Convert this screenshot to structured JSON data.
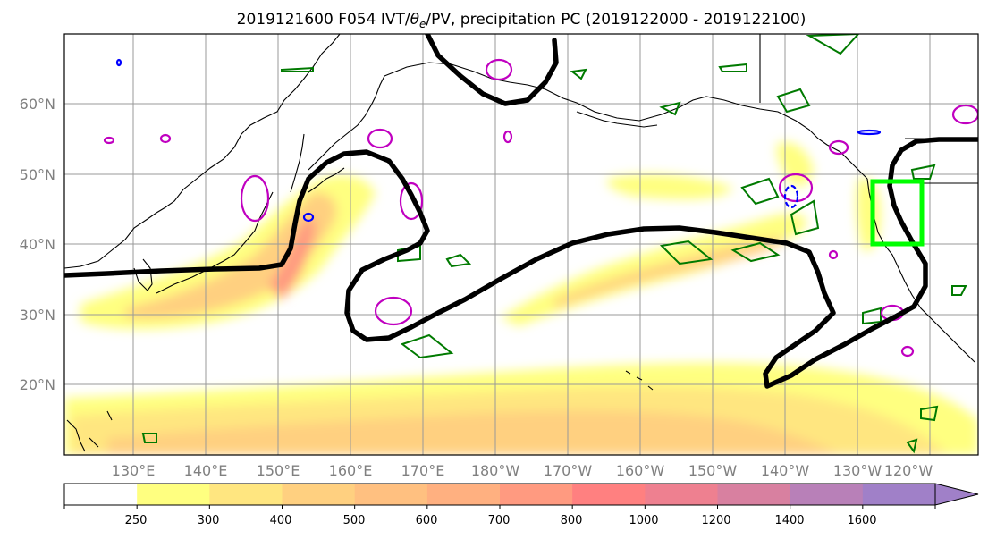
{
  "figure": {
    "title": "2019121600 F054 IVT/θe/PV, precipitation PC (2019122000 - 2019122100)",
    "title_parts": {
      "before": "2019121600 F054 IVT/",
      "theta": "θ",
      "theta_sub": "e",
      "after": "/PV, precipitation PC (2019122000 - 2019122100)"
    }
  },
  "map": {
    "lon_labels": [
      "130°E",
      "140°E",
      "150°E",
      "160°E",
      "170°E",
      "180°W",
      "170°W",
      "160°W",
      "150°W",
      "140°W",
      "130°W",
      "120°W"
    ],
    "lat_labels": [
      "20°N",
      "30°N",
      "40°N",
      "50°N",
      "60°N"
    ],
    "grid": true,
    "projection": "equirectangular",
    "extent": {
      "lon_min": 120,
      "lon_max": 246,
      "lat_min": 10,
      "lat_max": 70
    },
    "colors": {
      "ivt_contour": "#000000",
      "theta_e_contour": "#007a00",
      "pv_contour_magenta": "#c000c0",
      "pv_contour_blue": "#0000ff",
      "target_box": "#00ff00",
      "coastline": "#000000",
      "grid": "#999999"
    }
  },
  "colorbar": {
    "tick_labels": [
      "250",
      "300",
      "400",
      "500",
      "600",
      "700",
      "800",
      "1000",
      "1200",
      "1400",
      "1600"
    ],
    "colors": [
      "#ffffff",
      "#ffff80",
      "#ffe680",
      "#ffd080",
      "#ffc080",
      "#ffb080",
      "#ff9a80",
      "#ff8080",
      "#ee8090",
      "#d880a0",
      "#b880b8",
      "#a080c8"
    ],
    "extend": "max"
  }
}
